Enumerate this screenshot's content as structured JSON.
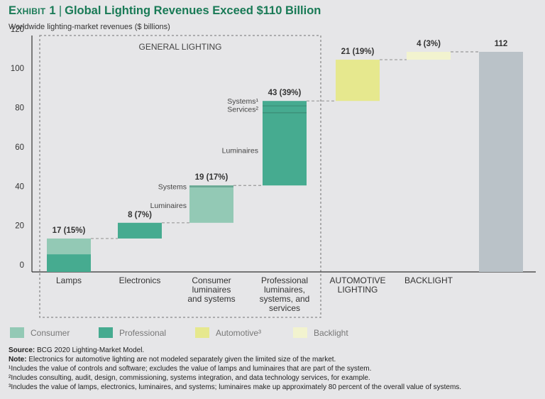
{
  "header": {
    "exhibit": "Exhibit 1",
    "title": "Global Lighting Revenues Exceed $110 Billion",
    "subtitle": "Worldwide lighting-market revenues ($ billions)"
  },
  "colors": {
    "consumer": "#93c9b5",
    "professional": "#46ab90",
    "professional_divider": "#3c8f78",
    "automotive": "#e6e88e",
    "backlight": "#f2f3cf",
    "total": "#bac2c8",
    "title": "#197a56"
  },
  "chart_data": {
    "type": "bar",
    "subtype": "waterfall",
    "title": "Global Lighting Revenues Exceed $110 Billion",
    "ylabel": "Worldwide lighting-market revenues ($ billions)",
    "xlabel": "",
    "ylim": [
      0,
      120
    ],
    "yticks": [
      0,
      20,
      40,
      60,
      80,
      100,
      120
    ],
    "grid": false,
    "group_label": "GENERAL LIGHTING",
    "group_members": [
      "Lamps",
      "Electronics",
      "Consumer luminaires and systems",
      "Professional luminaires, systems, and services"
    ],
    "categories": [
      {
        "label_lines": [
          "Lamps"
        ],
        "value_label": "17 (15%)",
        "start": 0,
        "segments": [
          {
            "series": "Professional",
            "value": 9
          },
          {
            "series": "Consumer",
            "value": 8
          }
        ],
        "segment_labels": []
      },
      {
        "label_lines": [
          "Electronics"
        ],
        "value_label": "8 (7%)",
        "start": 17,
        "segments": [
          {
            "series": "Professional",
            "value": 8
          }
        ],
        "segment_labels": []
      },
      {
        "label_lines": [
          "Consumer",
          "luminaires",
          "and systems"
        ],
        "value_label": "19 (17%)",
        "start": 25,
        "segments": [
          {
            "series": "Consumer",
            "value": 18,
            "name": "Luminaires"
          },
          {
            "series": "Consumer",
            "value": 1,
            "name": "Systems"
          }
        ],
        "segment_labels": [
          "Luminaires",
          "Systems"
        ]
      },
      {
        "label_lines": [
          "Professional",
          "luminaires,",
          "systems, and",
          "services"
        ],
        "value_label": "43 (39%)",
        "start": 44,
        "segments": [
          {
            "series": "Professional",
            "value": 37,
            "name": "Luminaires"
          },
          {
            "series": "Professional",
            "value": 3.5,
            "name": "Services²"
          },
          {
            "series": "Professional",
            "value": 2.5,
            "name": "Systems¹"
          }
        ],
        "segment_labels": [
          "Luminaires",
          "Services²",
          "Systems¹"
        ]
      },
      {
        "label_lines": [
          "AUTOMOTIVE",
          "LIGHTING"
        ],
        "value_label": "21 (19%)",
        "start": 87,
        "segments": [
          {
            "series": "Automotive",
            "value": 21
          }
        ],
        "segment_labels": []
      },
      {
        "label_lines": [
          "BACKLIGHT"
        ],
        "value_label": "4 (3%)",
        "start": 108,
        "segments": [
          {
            "series": "Backlight",
            "value": 4
          }
        ],
        "segment_labels": []
      },
      {
        "label_lines": [
          ""
        ],
        "value_label": "112",
        "start": 0,
        "segments": [
          {
            "series": "Total",
            "value": 112
          }
        ],
        "segment_labels": []
      }
    ],
    "legend": [
      {
        "label": "Consumer",
        "series": "Consumer"
      },
      {
        "label": "Professional",
        "series": "Professional"
      },
      {
        "label": "Automotive³",
        "series": "Automotive"
      },
      {
        "label": "Backlight",
        "series": "Backlight"
      }
    ],
    "legend_position": "bottom",
    "total": 112
  },
  "notes": {
    "source_label": "Source:",
    "source_text": " BCG 2020 Lighting-Market Model.",
    "note_label": "Note:",
    "note_text": " Electronics for automotive lighting are not modeled separately given the limited size of the market.",
    "footnotes": [
      "¹Includes the value of controls and software; excludes the value of lamps and luminaires that are part of the system.",
      "²Includes consulting, audit, design, commissioning, systems integration, and data technology services, for example.",
      "³Includes the value of lamps, electronics, luminaires, and systems; luminaires make up approximately 80 percent of the overall value of systems."
    ]
  }
}
